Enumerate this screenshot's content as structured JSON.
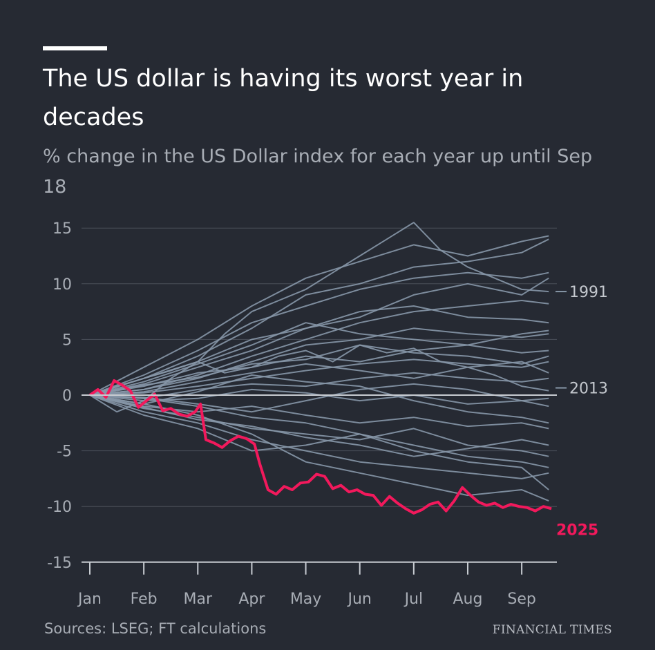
{
  "header": {
    "title": "The US dollar is having its worst year in decades",
    "subtitle": "% change in the US Dollar index for each year up until Sep 18"
  },
  "footer": {
    "source": "Sources: LSEG; FT calculations",
    "brand": "FINANCIAL TIMES"
  },
  "colors": {
    "background": "#262a33",
    "series": "#8797a8",
    "highlight": "#f2195c",
    "grid": "#4a4f59",
    "zero_line": "#c8ccd2"
  },
  "chart_data": {
    "type": "line",
    "title": "The US dollar is having its worst year in decades",
    "subtitle": "% change in the US Dollar index for each year up until Sep 18",
    "xlabel": "",
    "ylabel": "",
    "x_ticks": [
      "Jan",
      "Feb",
      "Mar",
      "Apr",
      "May",
      "Jun",
      "Jul",
      "Aug",
      "Sep"
    ],
    "y_ticks": [
      15,
      10,
      5,
      0,
      -5,
      -10,
      -15
    ],
    "ylim": [
      -15,
      16
    ],
    "xlim": [
      0,
      8.6
    ],
    "grid": true,
    "legend": "none",
    "x_unit": "months from Jan 1 (0 = Jan, 8 = Sep)",
    "highlight_series": "2025",
    "series": [
      {
        "name": "2025",
        "highlight": true,
        "x": [
          0,
          0.15,
          0.3,
          0.45,
          0.6,
          0.75,
          0.9,
          1.05,
          1.2,
          1.35,
          1.5,
          1.65,
          1.8,
          1.95,
          2.05,
          2.15,
          2.3,
          2.45,
          2.6,
          2.75,
          2.9,
          3.05,
          3.15,
          3.3,
          3.45,
          3.6,
          3.75,
          3.9,
          4.05,
          4.2,
          4.35,
          4.5,
          4.65,
          4.8,
          4.95,
          5.1,
          5.25,
          5.4,
          5.55,
          5.7,
          5.85,
          6.0,
          6.15,
          6.3,
          6.45,
          6.6,
          6.75,
          6.9,
          7.05,
          7.2,
          7.35,
          7.5,
          7.65,
          7.8,
          7.95,
          8.1,
          8.25,
          8.4,
          8.55
        ],
        "y": [
          0,
          0.5,
          -0.2,
          1.3,
          0.9,
          0.4,
          -1.1,
          -0.5,
          0.1,
          -1.4,
          -1.2,
          -1.7,
          -1.9,
          -1.5,
          -0.8,
          -4.0,
          -4.3,
          -4.7,
          -4.1,
          -3.7,
          -3.9,
          -4.4,
          -6.2,
          -8.5,
          -8.9,
          -8.2,
          -8.5,
          -7.9,
          -7.8,
          -7.1,
          -7.3,
          -8.4,
          -8.1,
          -8.7,
          -8.5,
          -8.9,
          -9.0,
          -9.9,
          -9.1,
          -9.7,
          -10.2,
          -10.6,
          -10.3,
          -9.8,
          -9.6,
          -10.4,
          -9.5,
          -8.3,
          -9.0,
          -9.6,
          -9.9,
          -9.7,
          -10.1,
          -9.8,
          -10.0,
          -10.1,
          -10.4,
          -10.0,
          -10.2
        ]
      },
      {
        "name": "1991",
        "highlight": false,
        "x": [
          0,
          0.5,
          1.0,
          1.5,
          2.0,
          2.5,
          3.0,
          3.5,
          4.0,
          4.5,
          5.0,
          5.5,
          6.0,
          6.5,
          7.0,
          7.5,
          8.0,
          8.5
        ],
        "y": [
          0,
          -1.5,
          -0.5,
          1.5,
          3.0,
          5.5,
          7.5,
          8.5,
          9.5,
          11.0,
          12.5,
          14.0,
          15.5,
          13.0,
          11.5,
          10.5,
          9.5,
          9.3
        ]
      },
      {
        "name": "2013",
        "highlight": false,
        "x": [
          0,
          0.5,
          1.0,
          1.5,
          2.0,
          2.5,
          3.0,
          3.5,
          4.0,
          4.5,
          5.0,
          5.5,
          6.0,
          6.5,
          7.0,
          7.5,
          8.0,
          8.5
        ],
        "y": [
          0,
          0.8,
          1.5,
          2.2,
          3.0,
          2.0,
          2.5,
          3.5,
          4.0,
          3.0,
          4.5,
          3.8,
          4.2,
          3.0,
          2.5,
          1.8,
          0.8,
          0.4
        ]
      },
      {
        "name": "",
        "highlight": false,
        "x": [
          0,
          1,
          2,
          3,
          4,
          5,
          6,
          7,
          8,
          8.5
        ],
        "y": [
          0,
          2.5,
          5,
          8,
          10.5,
          12,
          13.5,
          12.5,
          13.8,
          14.3
        ]
      },
      {
        "name": "",
        "highlight": false,
        "x": [
          0,
          1,
          2,
          3,
          4,
          5,
          6,
          7,
          8,
          8.5
        ],
        "y": [
          0,
          1.5,
          3.5,
          6,
          9,
          10,
          11.5,
          12,
          12.8,
          14.0
        ]
      },
      {
        "name": "",
        "highlight": false,
        "x": [
          0,
          1,
          2,
          3,
          4,
          5,
          6,
          7,
          8,
          8.5
        ],
        "y": [
          0,
          1.8,
          4,
          6.5,
          8,
          9.5,
          10.5,
          11,
          10.5,
          11.0
        ]
      },
      {
        "name": "",
        "highlight": false,
        "x": [
          0,
          1,
          2,
          3,
          4,
          5,
          6,
          7,
          8,
          8.5
        ],
        "y": [
          0,
          1,
          2.5,
          4,
          6,
          7.5,
          8,
          7,
          6.8,
          6.5
        ]
      },
      {
        "name": "",
        "highlight": false,
        "x": [
          0,
          1,
          2,
          3,
          4,
          5,
          6,
          7,
          8,
          8.5
        ],
        "y": [
          0,
          0.5,
          1.5,
          3,
          4.5,
          5,
          6,
          5.5,
          5.2,
          5.5
        ]
      },
      {
        "name": "",
        "highlight": false,
        "x": [
          0,
          1,
          2,
          3,
          4,
          5,
          6,
          7,
          8,
          8.5
        ],
        "y": [
          0,
          0.8,
          2,
          2.5,
          3.5,
          3,
          4,
          4.5,
          3.8,
          4.0
        ]
      },
      {
        "name": "",
        "highlight": false,
        "x": [
          0,
          1,
          2,
          3,
          4,
          5,
          6,
          7,
          8,
          8.5
        ],
        "y": [
          0,
          0.2,
          0.8,
          1.5,
          2.2,
          2.8,
          3.2,
          2.8,
          2.5,
          3.0
        ]
      },
      {
        "name": "",
        "highlight": false,
        "x": [
          0,
          1,
          2,
          3,
          4,
          5,
          6,
          7,
          8,
          8.5
        ],
        "y": [
          0,
          -0.3,
          0.5,
          1,
          0.8,
          1.5,
          2,
          1.5,
          1.2,
          1.5
        ]
      },
      {
        "name": "",
        "highlight": false,
        "x": [
          0,
          1,
          2,
          3,
          4,
          5,
          6,
          7,
          8,
          8.5
        ],
        "y": [
          0,
          -0.5,
          -0.3,
          0.5,
          0.2,
          -0.5,
          0,
          -0.8,
          -0.5,
          -0.3
        ]
      },
      {
        "name": "",
        "highlight": false,
        "x": [
          0,
          1,
          2,
          3,
          4,
          5,
          6,
          7,
          8,
          8.5
        ],
        "y": [
          0,
          -1,
          -1.5,
          -1,
          -1.8,
          -2.5,
          -2,
          -2.8,
          -2.5,
          -3.0
        ]
      },
      {
        "name": "",
        "highlight": false,
        "x": [
          0,
          1,
          2,
          3,
          4,
          5,
          6,
          7,
          8,
          8.5
        ],
        "y": [
          0,
          -1.2,
          -2,
          -3,
          -3.5,
          -4,
          -3,
          -4.5,
          -5,
          -5.5
        ]
      },
      {
        "name": "",
        "highlight": false,
        "x": [
          0,
          1,
          2,
          3,
          4,
          5,
          6,
          7,
          8,
          8.5
        ],
        "y": [
          0,
          -1.5,
          -2.5,
          -4,
          -5,
          -6,
          -6.5,
          -7,
          -7.5,
          -7.0
        ]
      },
      {
        "name": "",
        "highlight": false,
        "x": [
          0,
          1,
          2,
          3,
          4,
          5,
          6,
          7,
          8,
          8.5
        ],
        "y": [
          0,
          -0.8,
          -1.8,
          -3.5,
          -6,
          -7,
          -8,
          -9,
          -8.5,
          -9.5
        ]
      },
      {
        "name": "",
        "highlight": false,
        "x": [
          0,
          1,
          2,
          3,
          4,
          5,
          6,
          7,
          8,
          8.5
        ],
        "y": [
          0,
          -0.3,
          -1,
          -2,
          -2.5,
          -3.5,
          -4.5,
          -5.5,
          -6,
          -6.5
        ]
      },
      {
        "name": "",
        "highlight": false,
        "x": [
          0,
          1,
          2,
          3,
          4,
          5,
          6,
          7,
          8,
          8.5
        ],
        "y": [
          0,
          0.5,
          1.8,
          3.5,
          5,
          6.5,
          7.5,
          8,
          8.5,
          8.2
        ]
      },
      {
        "name": "",
        "highlight": false,
        "x": [
          0,
          1,
          2,
          3,
          4,
          5,
          6,
          7,
          8,
          8.5
        ],
        "y": [
          0,
          1.2,
          2.8,
          4.5,
          6.5,
          5.5,
          5,
          4.5,
          5.5,
          5.8
        ]
      },
      {
        "name": "",
        "highlight": false,
        "x": [
          0,
          1,
          2,
          3,
          4,
          5,
          6,
          7,
          8,
          8.5
        ],
        "y": [
          0,
          -0.8,
          0.3,
          1.8,
          1.2,
          0.8,
          -0.5,
          -1.5,
          -2,
          -2.5
        ]
      },
      {
        "name": "",
        "highlight": false,
        "x": [
          0,
          1,
          2,
          3,
          4,
          5,
          6,
          7,
          8,
          8.5
        ],
        "y": [
          0,
          -1.8,
          -3,
          -5,
          -4.5,
          -3.5,
          -5,
          -6,
          -6.5,
          -8.5
        ]
      },
      {
        "name": "",
        "highlight": false,
        "x": [
          0,
          1,
          2,
          3,
          4,
          5,
          6,
          7,
          8,
          8.5
        ],
        "y": [
          0,
          0.3,
          1.2,
          2,
          2.8,
          2.2,
          1.5,
          2.5,
          3,
          2.0
        ]
      },
      {
        "name": "",
        "highlight": false,
        "x": [
          0,
          1,
          2,
          3,
          4,
          5,
          6,
          7,
          8,
          8.5
        ],
        "y": [
          0,
          -0.2,
          -0.8,
          -1.5,
          -0.5,
          0.5,
          1,
          0.5,
          -0.5,
          -1.0
        ]
      },
      {
        "name": "",
        "highlight": false,
        "x": [
          0,
          1,
          2,
          3,
          4,
          5,
          6,
          7,
          8,
          8.5
        ],
        "y": [
          0,
          1.5,
          3,
          5,
          6,
          7,
          9,
          10,
          9,
          10.5
        ]
      },
      {
        "name": "",
        "highlight": false,
        "x": [
          0,
          1,
          2,
          3,
          4,
          5,
          6,
          7,
          8,
          8.5
        ],
        "y": [
          0,
          0.9,
          1.6,
          2.8,
          3.2,
          4.5,
          3.8,
          3.5,
          2.8,
          3.5
        ]
      },
      {
        "name": "",
        "highlight": false,
        "x": [
          0,
          1,
          2,
          3,
          4,
          5,
          6,
          7,
          8,
          8.5
        ],
        "y": [
          0,
          -1.1,
          -2.2,
          -2.8,
          -3.8,
          -4.5,
          -5.5,
          -4.8,
          -4,
          -4.5
        ]
      }
    ]
  }
}
